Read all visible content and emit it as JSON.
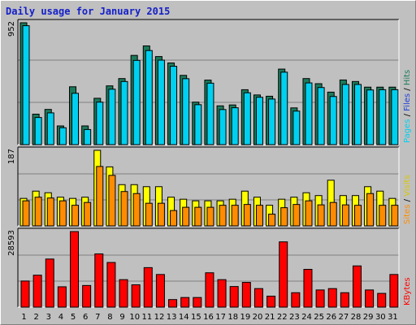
{
  "title": "Daily usage for January 2015",
  "colors": {
    "hits": "#1c7a5a",
    "files": "#1c3fd8",
    "pages": "#00d0f0",
    "visits": "#ffff00",
    "sites": "#ff8c00",
    "kbytes": "#ff0000",
    "weekend_label": "#10905a",
    "weekday_label": "#000000"
  },
  "chart_data": [
    {
      "type": "bar",
      "name": "pages-files-hits",
      "ymax_label": "952",
      "ylim": [
        0,
        952
      ],
      "legend": {
        "pages": "Pages",
        "files": "Files",
        "hits": "Hits",
        "sep1": " / ",
        "sep2": " / "
      },
      "categories": [
        "1",
        "2",
        "3",
        "4",
        "5",
        "6",
        "7",
        "8",
        "9",
        "10",
        "11",
        "12",
        "13",
        "14",
        "15",
        "16",
        "17",
        "18",
        "19",
        "20",
        "21",
        "22",
        "23",
        "24",
        "25",
        "26",
        "27",
        "28",
        "29",
        "30",
        "31"
      ],
      "series": [
        {
          "key": "hits",
          "values": [
            952,
            238,
            275,
            146,
            452,
            146,
            362,
            459,
            516,
            697,
            771,
            688,
            638,
            541,
            332,
            504,
            303,
            310,
            429,
            388,
            378,
            590,
            287,
            516,
            476,
            410,
            505,
            493,
            449,
            449,
            449
          ]
        },
        {
          "key": "pages",
          "values": [
            929,
            212,
            248,
            132,
            401,
            118,
            332,
            433,
            493,
            658,
            735,
            660,
            612,
            515,
            312,
            480,
            274,
            288,
            405,
            370,
            356,
            566,
            262,
            482,
            446,
            376,
            470,
            470,
            427,
            429,
            429
          ]
        }
      ]
    },
    {
      "type": "bar",
      "name": "sites-visits",
      "ymax_label": "187",
      "ylim": [
        0,
        187
      ],
      "legend": {
        "sites": "Sites",
        "visits": "Visits",
        "sep": " / "
      },
      "categories": [
        "1",
        "2",
        "3",
        "4",
        "5",
        "6",
        "7",
        "8",
        "9",
        "10",
        "11",
        "12",
        "13",
        "14",
        "15",
        "16",
        "17",
        "18",
        "19",
        "20",
        "21",
        "22",
        "23",
        "24",
        "25",
        "26",
        "27",
        "28",
        "29",
        "30",
        "31"
      ],
      "series": [
        {
          "key": "visits",
          "values": [
            68,
            86,
            82,
            71,
            68,
            71,
            187,
            146,
            102,
            102,
            97,
            97,
            71,
            66,
            62,
            62,
            62,
            66,
            86,
            71,
            51,
            66,
            71,
            82,
            75,
            113,
            75,
            75,
            97,
            86,
            68
          ]
        },
        {
          "key": "sites",
          "values": [
            62,
            71,
            69,
            62,
            51,
            58,
            147,
            125,
            85,
            80,
            56,
            56,
            38,
            46,
            46,
            46,
            51,
            51,
            53,
            51,
            29,
            45,
            53,
            62,
            52,
            58,
            52,
            51,
            80,
            51,
            51
          ]
        }
      ]
    },
    {
      "type": "bar",
      "name": "kbytes",
      "ymax_label": "28593",
      "ylim": [
        0,
        28593
      ],
      "legend": {
        "kbytes": "KBytes"
      },
      "categories": [
        "1",
        "2",
        "3",
        "4",
        "5",
        "6",
        "7",
        "8",
        "9",
        "10",
        "11",
        "12",
        "13",
        "14",
        "15",
        "16",
        "17",
        "18",
        "19",
        "20",
        "21",
        "22",
        "23",
        "24",
        "25",
        "26",
        "27",
        "28",
        "29",
        "30",
        "31"
      ],
      "series": [
        {
          "key": "kbytes",
          "values": [
            9880,
            12090,
            18200,
            7700,
            28593,
            8190,
            20150,
            16900,
            10400,
            8450,
            14950,
            12350,
            2860,
            3640,
            3640,
            13000,
            10400,
            7800,
            9360,
            7020,
            4160,
            24700,
            5460,
            14300,
            6500,
            7020,
            5460,
            15600,
            6500,
            5200,
            12350
          ]
        }
      ]
    }
  ],
  "weekend_days": [
    3,
    4,
    10,
    11,
    17,
    18,
    24,
    25,
    31
  ]
}
